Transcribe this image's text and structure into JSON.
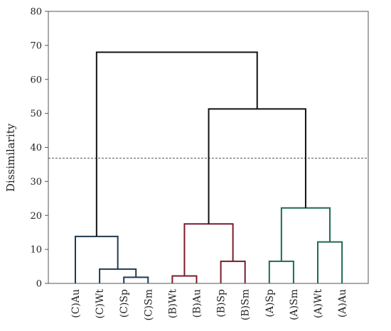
{
  "chart_data": {
    "type": "dendrogram",
    "ylabel": "Dissimilarity",
    "ylim": [
      0,
      80
    ],
    "yticks": [
      "0",
      "10",
      "20",
      "30",
      "40",
      "50",
      "60",
      "70",
      "80"
    ],
    "cutoff": 36.8,
    "leaves": [
      "(C)Au",
      "(C)Wt",
      "(C)Sp",
      "(C)Sm",
      "(B)Wt",
      "(B)Au",
      "(B)Sp",
      "(B)Sm",
      "(A)Sp",
      "(A)Sm",
      "(A)Wt",
      "(A)Au"
    ],
    "colors": {
      "C": "#1f3b52",
      "B": "#7a1b2e",
      "A": "#1f6b4e",
      "root": "#111111"
    },
    "merges": [
      {
        "id": "m1",
        "left": "(C)Sp",
        "right": "(C)Sm",
        "height": 1.8,
        "color": "C"
      },
      {
        "id": "m2",
        "left": "(C)Wt",
        "right": "m1",
        "height": 4.2,
        "color": "C"
      },
      {
        "id": "m3",
        "left": "(C)Au",
        "right": "m2",
        "height": 13.8,
        "color": "C"
      },
      {
        "id": "m4",
        "left": "(B)Wt",
        "right": "(B)Au",
        "height": 2.2,
        "color": "B"
      },
      {
        "id": "m5",
        "left": "(B)Sp",
        "right": "(B)Sm",
        "height": 6.5,
        "color": "B"
      },
      {
        "id": "m6",
        "left": "m4",
        "right": "m5",
        "height": 17.5,
        "color": "B"
      },
      {
        "id": "m7",
        "left": "(A)Sp",
        "right": "(A)Sm",
        "height": 6.5,
        "color": "A"
      },
      {
        "id": "m8",
        "left": "(A)Wt",
        "right": "(A)Au",
        "height": 12.2,
        "color": "A"
      },
      {
        "id": "m9",
        "left": "m7",
        "right": "m8",
        "height": 22.2,
        "color": "A"
      },
      {
        "id": "m10",
        "left": "m6",
        "right": "m9",
        "height": 51.3,
        "color": "root"
      },
      {
        "id": "m11",
        "left": "m3",
        "right": "m10",
        "height": 68.0,
        "color": "root"
      }
    ]
  }
}
